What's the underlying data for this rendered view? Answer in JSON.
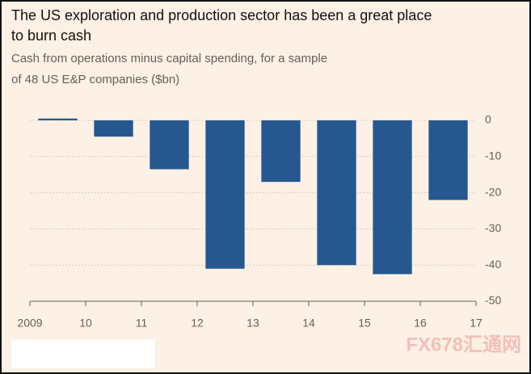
{
  "chart_data": {
    "type": "bar",
    "title": [
      "The US exploration and production sector has been a great place",
      "to burn cash"
    ],
    "subtitle": [
      "Cash from operations minus capital spending, for a sample",
      "of 48 US E&P companies ($bn)"
    ],
    "x": [
      2009,
      2010,
      2011,
      2012,
      2013,
      2014,
      2015,
      2016
    ],
    "values": [
      0.5,
      -4.5,
      -13.5,
      -41,
      -17,
      -40,
      -42.5,
      -22
    ],
    "color": "#26578f",
    "xlim": [
      2009,
      2017
    ],
    "xticks": [
      {
        "value": 2009,
        "label": "2009"
      },
      {
        "value": 2010,
        "label": "10"
      },
      {
        "value": 2011,
        "label": "11"
      },
      {
        "value": 2012,
        "label": "12"
      },
      {
        "value": 2013,
        "label": "13"
      },
      {
        "value": 2014,
        "label": "14"
      },
      {
        "value": 2015,
        "label": "15"
      },
      {
        "value": 2016,
        "label": "16"
      },
      {
        "value": 2017,
        "label": "17"
      }
    ],
    "ylim": [
      -50,
      0
    ],
    "yticks": [
      0,
      -10,
      -20,
      -30,
      -40,
      -50
    ],
    "grid": true,
    "watermark": "FX678汇通网"
  }
}
